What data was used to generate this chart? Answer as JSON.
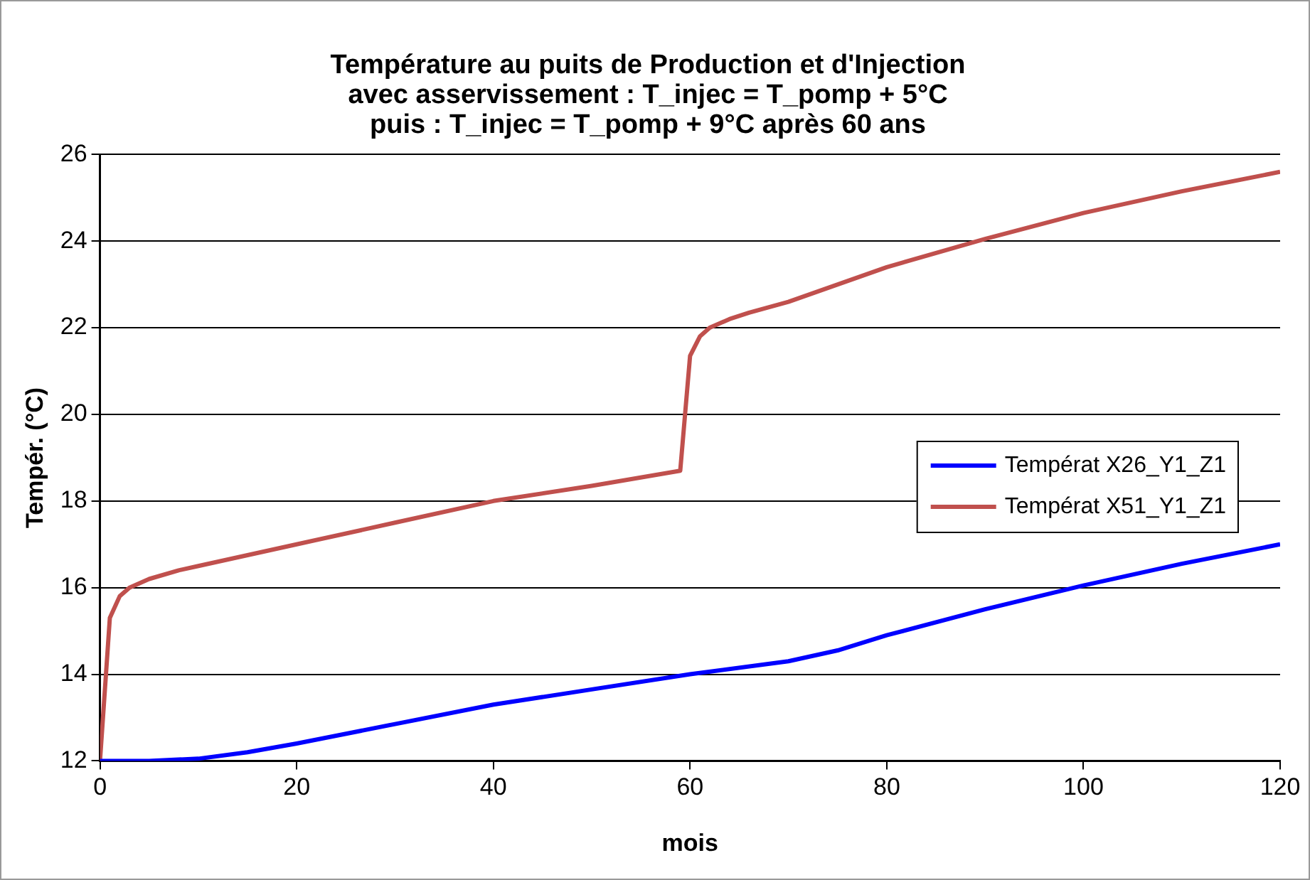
{
  "chart_data": {
    "type": "line",
    "title": "Température au puits de Production et d'Injection\navec asservissement : T_injec = T_pomp + 5°C\npuis : T_injec = T_pomp + 9°C après 60 ans",
    "xlabel": "mois",
    "ylabel": "Tempér. (°C)",
    "xlim": [
      0,
      120
    ],
    "xticks": [
      0,
      20,
      40,
      60,
      80,
      100,
      120
    ],
    "ylim": [
      12,
      26
    ],
    "yticks": [
      12,
      14,
      16,
      18,
      20,
      22,
      24,
      26
    ],
    "grid": "y",
    "legend": "right",
    "marker": "none",
    "line_style": "solid",
    "series": [
      {
        "name": "Températ X26_Y1_Z1",
        "color": "#0000ff",
        "x": [
          0,
          5,
          10,
          15,
          20,
          30,
          40,
          50,
          60,
          70,
          75,
          80,
          90,
          100,
          110,
          120
        ],
        "values": [
          12,
          12,
          12.05,
          12.2,
          12.4,
          12.85,
          13.3,
          13.65,
          14,
          14.3,
          14.55,
          14.9,
          15.5,
          16.05,
          16.55,
          17
        ]
      },
      {
        "name": "Températ X51_Y1_Z1",
        "color": "#c0504d",
        "x": [
          0,
          1,
          2,
          3,
          5,
          8,
          10,
          20,
          30,
          40,
          50,
          59,
          60,
          61,
          62,
          64,
          66,
          70,
          80,
          90,
          100,
          110,
          120
        ],
        "values": [
          12,
          15.3,
          15.8,
          16,
          16.2,
          16.4,
          16.5,
          17,
          17.5,
          18,
          18.35,
          18.7,
          21.35,
          21.8,
          22,
          22.2,
          22.35,
          22.6,
          23.4,
          24.05,
          24.65,
          25.15,
          25.6
        ]
      }
    ]
  }
}
